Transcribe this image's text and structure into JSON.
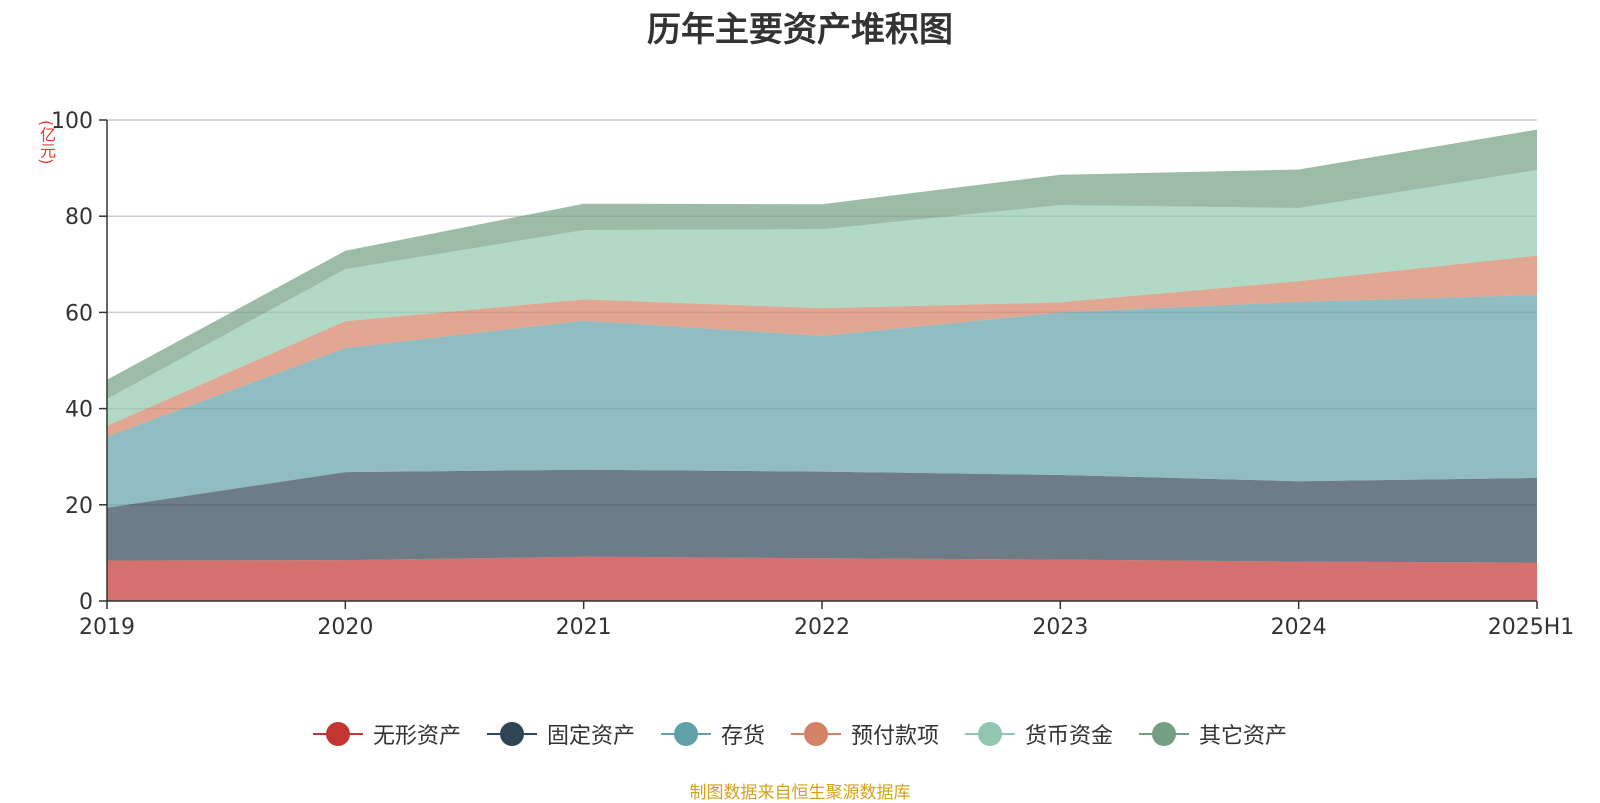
{
  "chart_data": {
    "type": "area",
    "stacked": true,
    "title": "历年主要资产堆积图",
    "y_unit": "(亿元)",
    "categories": [
      "2019",
      "2020",
      "2021",
      "2022",
      "2023",
      "2024",
      "2025H1"
    ],
    "ylim": [
      0,
      100
    ],
    "y_ticks": [
      "0",
      "20",
      "40",
      "60",
      "80",
      "100"
    ],
    "grid": true,
    "legend_position": "bottom",
    "series": [
      {
        "name": "无形资产",
        "color": "#c23531",
        "values": [
          8.4,
          8.5,
          9.2,
          8.9,
          8.6,
          8.2,
          8.0
        ]
      },
      {
        "name": "固定资产",
        "color": "#2f4554",
        "values": [
          11.0,
          18.3,
          18.1,
          18.0,
          17.6,
          16.7,
          17.6
        ]
      },
      {
        "name": "存货",
        "color": "#61a0a8",
        "values": [
          14.8,
          25.8,
          31.0,
          28.2,
          33.8,
          37.3,
          38.0
        ]
      },
      {
        "name": "预付款项",
        "color": "#d48265",
        "values": [
          2.2,
          5.6,
          4.4,
          5.8,
          2.1,
          4.3,
          8.2
        ]
      },
      {
        "name": "货币资金",
        "color": "#91c7ae",
        "values": [
          5.6,
          10.8,
          14.4,
          16.4,
          20.2,
          15.2,
          17.8
        ]
      },
      {
        "name": "其它资产",
        "color": "#749f83",
        "values": [
          4.0,
          3.8,
          5.5,
          5.2,
          6.3,
          8.0,
          8.4
        ]
      }
    ]
  },
  "source_note": "制图数据来自恒生聚源数据库"
}
